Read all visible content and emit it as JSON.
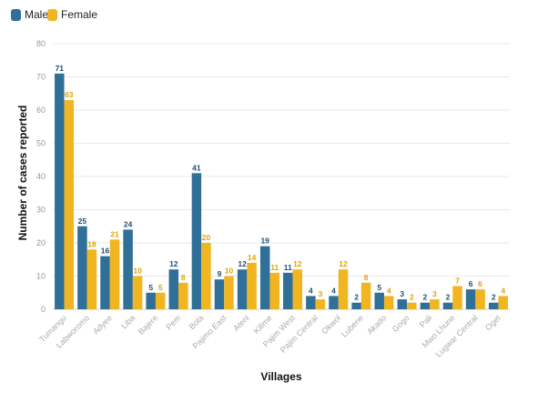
{
  "chart_data": {
    "type": "bar",
    "xlabel": "Villages",
    "ylabel": "Number of cases reported",
    "ylim": [
      0,
      80
    ],
    "yticks": [
      0,
      10,
      20,
      30,
      40,
      50,
      60,
      70,
      80
    ],
    "grid": true,
    "legend_position": "top-left",
    "categories": [
      "Tumangu",
      "Labworomo",
      "Adyee",
      "Liba",
      "Bajere",
      "Pem",
      "Bola",
      "Pajimo East",
      "Ateni",
      "Kilime",
      "Pajim West",
      "Pajim Central",
      "Okwol",
      "Lubene",
      "Akado",
      "Gogo",
      "Pali",
      "Mwo Lhune",
      "Lugwar Central",
      "Oget"
    ],
    "series": [
      {
        "name": "Male",
        "color": "#2f6f98",
        "values": [
          71,
          25,
          16,
          24,
          5,
          12,
          41,
          9,
          12,
          19,
          11,
          4,
          4,
          2,
          5,
          3,
          2,
          2,
          6,
          2
        ]
      },
      {
        "name": "Female",
        "color": "#f1b521",
        "values": [
          63,
          18,
          21,
          10,
          5,
          8,
          20,
          10,
          14,
          11,
          12,
          3,
          12,
          8,
          4,
          2,
          3,
          7,
          6,
          4
        ]
      }
    ]
  }
}
